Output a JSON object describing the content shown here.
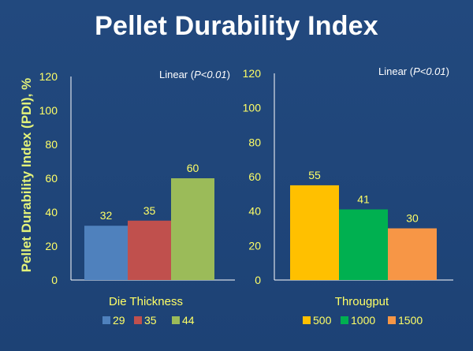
{
  "title": "Pellet Durability Index",
  "ylabel": "Pellet Durability Index (PDI), %",
  "colors": {
    "background": "#1f467a",
    "axis": "#ffffff",
    "text_yellow": "#ffff66"
  },
  "chart_data": [
    {
      "type": "bar",
      "xlabel": "Die Thickness",
      "annotation": {
        "prefix": "Linear (",
        "p": "P<0.01",
        "suffix": ")"
      },
      "ylim": [
        0,
        120
      ],
      "yticks": [
        "0",
        "20",
        "40",
        "60",
        "80",
        "100",
        "120"
      ],
      "legend_position": "bottom",
      "series": [
        {
          "name": "29",
          "value": 32,
          "color": "#4f81bd"
        },
        {
          "name": "35",
          "value": 35,
          "color": "#c0504d"
        },
        {
          "name": "44",
          "value": 60,
          "color": "#9bbb59"
        }
      ]
    },
    {
      "type": "bar",
      "xlabel": "Througput",
      "annotation": {
        "prefix": "Linear (",
        "p": "P<0.01",
        "suffix": ")"
      },
      "ylim": [
        0,
        120
      ],
      "yticks": [
        "0",
        "20",
        "40",
        "60",
        "80",
        "100",
        "120"
      ],
      "legend_position": "bottom",
      "series": [
        {
          "name": "500",
          "value": 55,
          "color": "#ffc000"
        },
        {
          "name": "1000",
          "value": 41,
          "color": "#00b050"
        },
        {
          "name": "1500",
          "value": 30,
          "color": "#f79646"
        }
      ]
    }
  ]
}
